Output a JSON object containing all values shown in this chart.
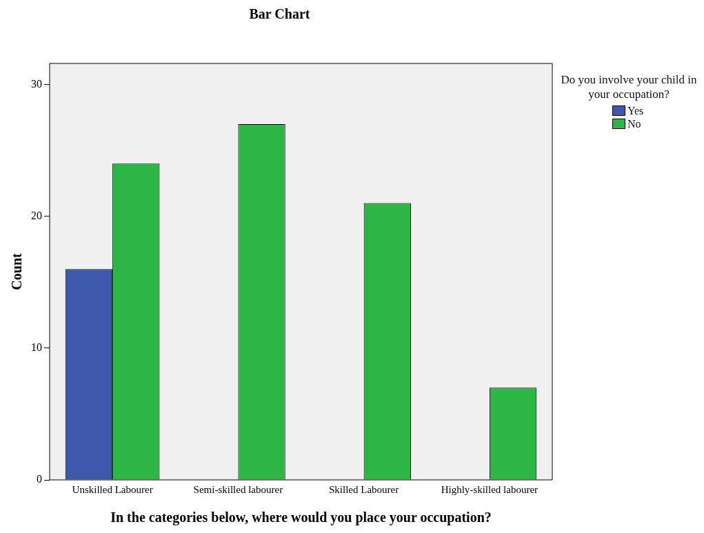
{
  "chart_data": {
    "type": "bar",
    "title": "Bar Chart",
    "xlabel": "In the categories below, where would you place your occupation?",
    "ylabel": "Count",
    "legend_title": "Do you involve your child in your occupation?",
    "categories": [
      "Unskilled Labourer",
      "Semi-skilled labourer",
      "Skilled Labourer",
      "Highly-skilled labourer"
    ],
    "series": [
      {
        "name": "Yes",
        "color": "#3e58ac",
        "values": [
          16,
          null,
          null,
          null
        ]
      },
      {
        "name": "No",
        "color": "#2db546",
        "values": [
          24,
          27,
          21,
          7
        ]
      }
    ],
    "ylim": [
      0,
      31.6
    ],
    "yticks": [
      0,
      10,
      20,
      30
    ],
    "grid": false,
    "legend": "top right"
  }
}
